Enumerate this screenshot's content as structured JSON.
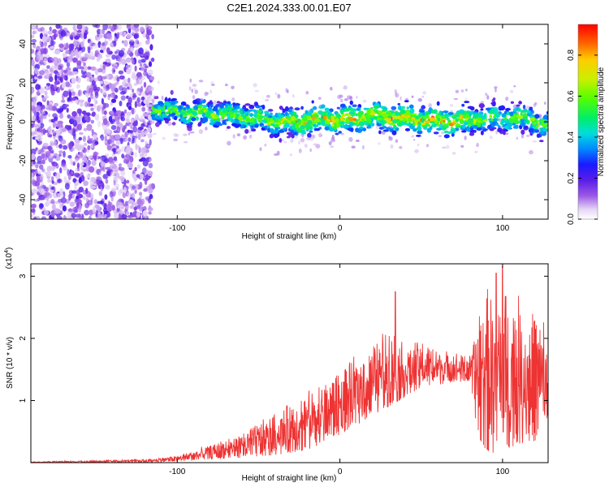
{
  "page_title": "C2E1.2024.333.00.01.E07",
  "chart_data": [
    {
      "type": "heatmap",
      "xlabel": "Height of straight line (km)",
      "ylabel": "Frequency (Hz)",
      "xlim": [
        -190,
        128
      ],
      "ylim": [
        -50,
        50
      ],
      "x_ticks": [
        -100,
        0,
        100
      ],
      "y_ticks": [
        -40,
        -20,
        0,
        20,
        40
      ],
      "colorbar": {
        "label": "Normalized spectral amplitude",
        "range": [
          0,
          0.95
        ],
        "ticks": [
          0.0,
          0.2,
          0.4,
          0.6,
          0.8
        ],
        "colormap": "rainbow (white-violet-blue-cyan-green-yellow-red)"
      },
      "noise_region_x": [
        -190,
        -115
      ],
      "signal_centerline": {
        "x": [
          -115,
          -100,
          -80,
          -60,
          -40,
          -25,
          -10,
          0,
          20,
          40,
          60,
          80,
          100,
          115,
          128
        ],
        "freq_hz": [
          7,
          5,
          4,
          3,
          0,
          0,
          2,
          1,
          3,
          2,
          0,
          1,
          2,
          2,
          -2
        ]
      },
      "peak_amplitude_x_range": [
        -30,
        80
      ]
    },
    {
      "type": "line",
      "xlabel": "Height of straight line (km)",
      "ylabel": "SNR (10 * v/v)",
      "y_scale_label": "(x10",
      "y_scale_exponent": "4",
      "y_scale": 10000,
      "xlim": [
        -190,
        128
      ],
      "ylim": [
        0,
        3.2
      ],
      "x_ticks": [
        -100,
        0,
        100
      ],
      "y_ticks": [
        1,
        2,
        3
      ],
      "color": "#ee3333",
      "series": [
        {
          "x": [
            -190,
            -150,
            -120,
            -100,
            -80,
            -60,
            -40,
            -20,
            0,
            10,
            20,
            30,
            40,
            50,
            60,
            70,
            80,
            85,
            90,
            95,
            100,
            110,
            120,
            128
          ],
          "envelope_low": [
            0.0,
            0.0,
            0.0,
            0.02,
            0.05,
            0.08,
            0.12,
            0.2,
            0.45,
            0.6,
            0.75,
            0.9,
            1.05,
            1.2,
            1.25,
            1.3,
            1.3,
            0.4,
            0.2,
            0.15,
            0.2,
            0.3,
            0.35,
            0.5
          ],
          "envelope_high": [
            0.02,
            0.04,
            0.06,
            0.12,
            0.3,
            0.5,
            0.85,
            1.2,
            1.55,
            1.75,
            2.0,
            2.3,
            1.95,
            2.0,
            1.9,
            1.8,
            1.75,
            2.6,
            2.9,
            3.0,
            3.1,
            2.8,
            2.6,
            2.3
          ],
          "peak_values": [
            {
              "x": 34,
              "y": 2.75
            },
            {
              "x": 96,
              "y": 3.05
            },
            {
              "x": 100,
              "y": 3.15
            }
          ]
        }
      ]
    }
  ],
  "colors": {
    "frame": "#000000",
    "grid": "#000000",
    "snr_line": "#ee3333"
  }
}
